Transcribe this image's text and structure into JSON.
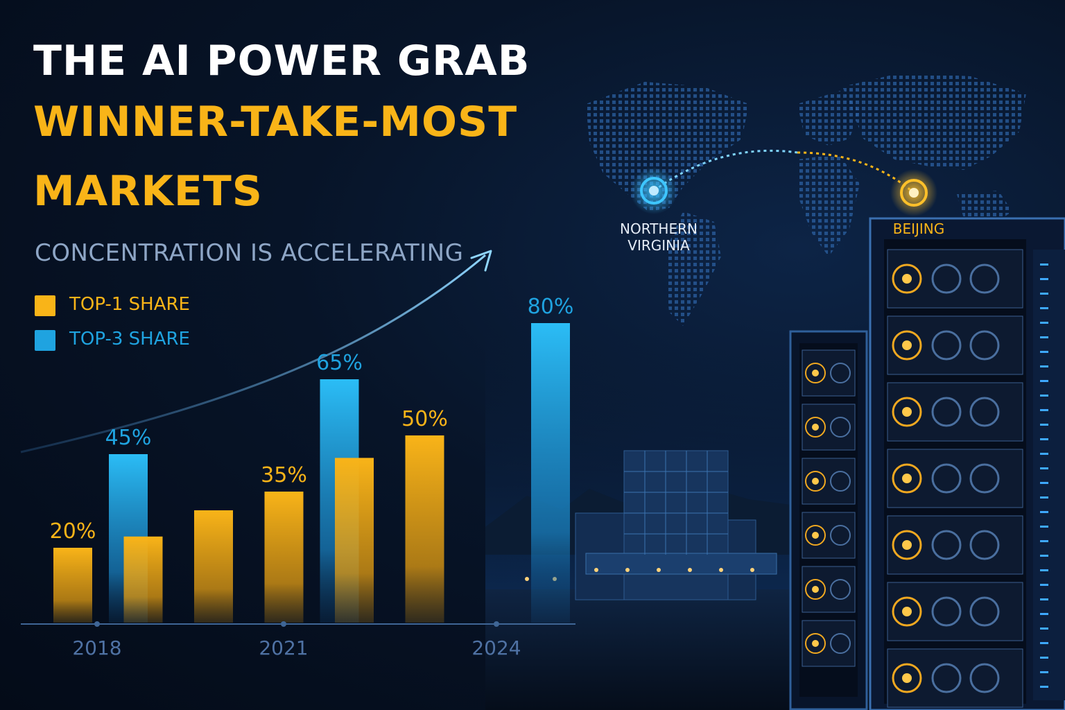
{
  "title": {
    "line1": "THE AI POWER GRAB",
    "line2": "WINNER-TAKE-MOST",
    "line3": "MARKETS"
  },
  "subtitle": "CONCENTRATION IS ACCELERATING",
  "legend": [
    {
      "name": "TOP-1 SHARE",
      "color": "#f9b418",
      "icon": "square-swatch"
    },
    {
      "name": "TOP-3 SHARE",
      "color": "#1fa3e0",
      "icon": "square-swatch"
    }
  ],
  "map": {
    "locations": [
      {
        "name_line1": "NORTHERN",
        "name_line2": "VIRGINIA",
        "color": "#1fb4ff",
        "icon": "location-pin-icon"
      },
      {
        "name": "BEIJING",
        "color": "#f9b418",
        "icon": "location-pin-icon"
      }
    ]
  },
  "chart_data": {
    "type": "bar",
    "title": "",
    "xlabel": "",
    "ylabel": "",
    "ylim": [
      0,
      100
    ],
    "grid": false,
    "legend_position": "top-left",
    "x_tick_labels": [
      "2018",
      "2021",
      "2024"
    ],
    "series": [
      {
        "name": "TOP-1 SHARE",
        "color": "#f9b418"
      },
      {
        "name": "TOP-3 SHARE",
        "color": "#1fa3e0"
      }
    ],
    "bars": [
      {
        "series": "TOP-1 SHARE",
        "x": 2018,
        "value": 20,
        "label": "20%"
      },
      {
        "series": "TOP-3 SHARE",
        "x": 2018,
        "value": 45,
        "label": "45%"
      },
      {
        "series": "TOP-1 SHARE",
        "x": 2019,
        "value": 23,
        "label": ""
      },
      {
        "series": "TOP-1 SHARE",
        "x": 2020,
        "value": 30,
        "label": ""
      },
      {
        "series": "TOP-1 SHARE",
        "x": 2021,
        "value": 35,
        "label": "35%"
      },
      {
        "series": "TOP-3 SHARE",
        "x": 2021,
        "value": 65,
        "label": "65%"
      },
      {
        "series": "TOP-1 SHARE",
        "x": 2022,
        "value": 44,
        "label": ""
      },
      {
        "series": "TOP-1 SHARE",
        "x": 2023,
        "value": 50,
        "label": "50%"
      },
      {
        "series": "TOP-3 SHARE",
        "x": 2024,
        "value": 80,
        "label": "80%"
      }
    ],
    "trend": "upward-arrow"
  }
}
